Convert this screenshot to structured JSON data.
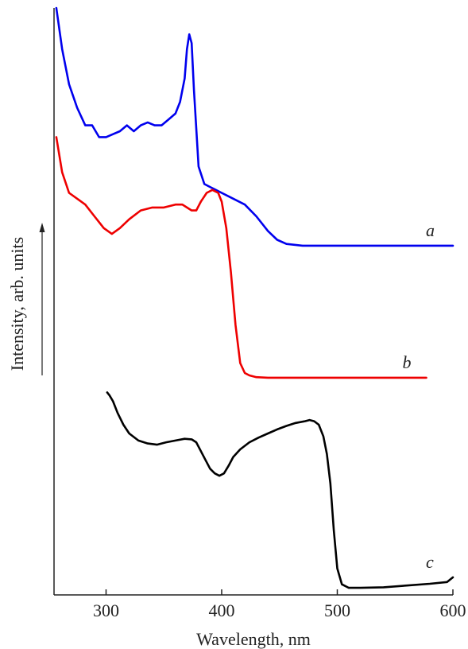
{
  "chart_data": {
    "type": "line",
    "xlabel": "Wavelength, nm",
    "ylabel": "Intensity, arb. units",
    "xlim": [
      255,
      600
    ],
    "ylim": [
      0,
      1
    ],
    "x_ticks": [
      300,
      400,
      500,
      600
    ],
    "x_tick_labels": [
      "300",
      "400",
      "500",
      "600"
    ],
    "grid": false,
    "legend": "none",
    "series": [
      {
        "name": "a",
        "color": "#0000ee",
        "x": [
          257,
          262,
          268,
          275,
          282,
          288,
          294,
          300,
          306,
          312,
          318,
          324,
          330,
          336,
          342,
          348,
          354,
          360,
          364,
          368,
          370,
          372,
          374,
          376,
          380,
          385,
          390,
          395,
          400,
          410,
          420,
          430,
          440,
          448,
          456,
          470,
          500,
          550,
          600
        ],
        "y": [
          1.0,
          0.93,
          0.87,
          0.83,
          0.8,
          0.8,
          0.78,
          0.78,
          0.785,
          0.79,
          0.8,
          0.79,
          0.8,
          0.805,
          0.8,
          0.8,
          0.81,
          0.82,
          0.84,
          0.88,
          0.93,
          0.955,
          0.94,
          0.86,
          0.73,
          0.7,
          0.695,
          0.69,
          0.685,
          0.675,
          0.665,
          0.645,
          0.62,
          0.605,
          0.598,
          0.595,
          0.595,
          0.595,
          0.595
        ],
        "label": "a"
      },
      {
        "name": "b",
        "color": "#ee0000",
        "x": [
          257,
          262,
          268,
          275,
          282,
          290,
          298,
          305,
          312,
          320,
          330,
          340,
          350,
          360,
          366,
          370,
          374,
          378,
          382,
          387,
          392,
          397,
          400,
          404,
          408,
          412,
          416,
          420,
          424,
          430,
          440,
          460,
          500,
          550,
          577
        ],
        "y": [
          0.78,
          0.72,
          0.685,
          0.675,
          0.665,
          0.645,
          0.625,
          0.615,
          0.625,
          0.64,
          0.655,
          0.66,
          0.66,
          0.665,
          0.665,
          0.66,
          0.655,
          0.655,
          0.67,
          0.685,
          0.69,
          0.685,
          0.67,
          0.625,
          0.55,
          0.46,
          0.395,
          0.378,
          0.374,
          0.371,
          0.37,
          0.37,
          0.37,
          0.37,
          0.37
        ],
        "label": "b"
      },
      {
        "name": "c",
        "color": "#000000",
        "x": [
          301,
          303,
          306,
          310,
          315,
          320,
          328,
          336,
          344,
          352,
          360,
          368,
          374,
          378,
          382,
          386,
          390,
          394,
          398,
          402,
          406,
          410,
          416,
          424,
          432,
          440,
          448,
          456,
          464,
          472,
          476,
          480,
          484,
          488,
          491,
          494,
          497,
          500,
          504,
          510,
          520,
          540,
          560,
          580,
          595,
          600
        ],
        "y": [
          0.345,
          0.34,
          0.33,
          0.31,
          0.29,
          0.275,
          0.263,
          0.258,
          0.256,
          0.26,
          0.263,
          0.266,
          0.265,
          0.26,
          0.245,
          0.23,
          0.215,
          0.207,
          0.203,
          0.207,
          0.22,
          0.235,
          0.248,
          0.26,
          0.268,
          0.275,
          0.282,
          0.288,
          0.293,
          0.296,
          0.298,
          0.296,
          0.29,
          0.27,
          0.24,
          0.19,
          0.11,
          0.045,
          0.018,
          0.012,
          0.012,
          0.013,
          0.016,
          0.019,
          0.022,
          0.03
        ],
        "label": "c"
      }
    ]
  }
}
